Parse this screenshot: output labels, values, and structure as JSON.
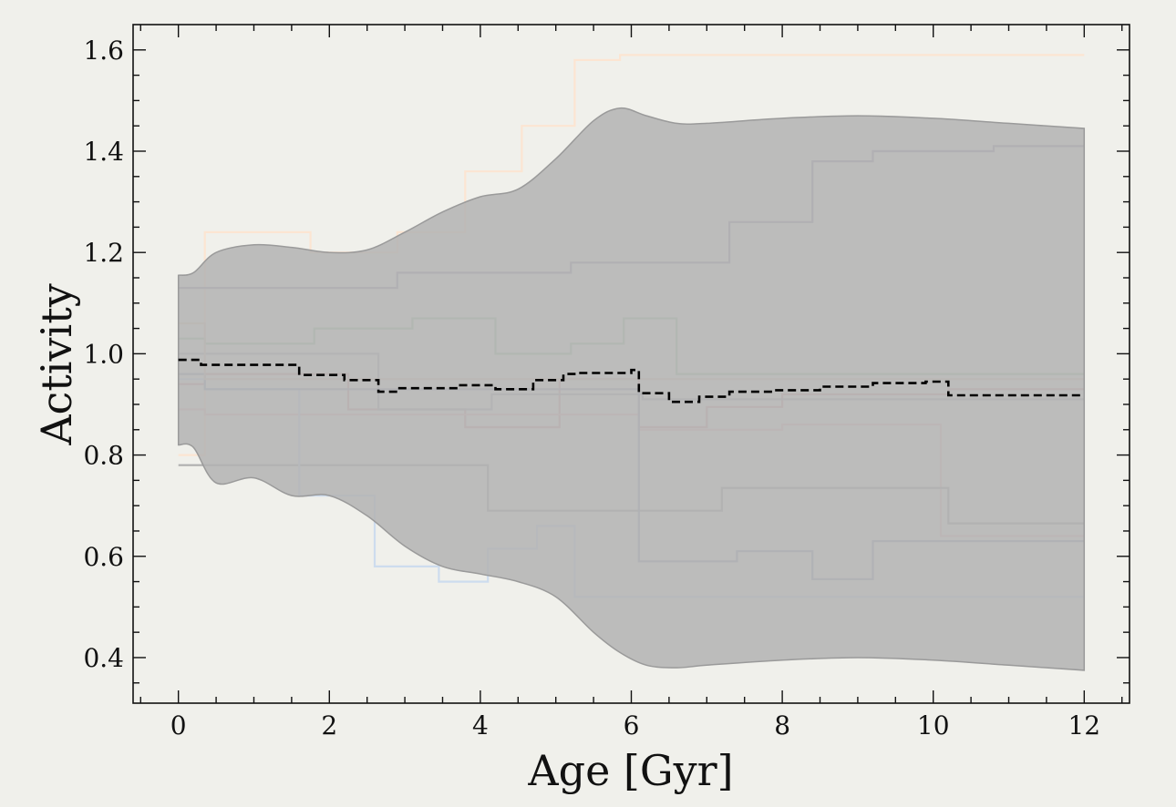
{
  "chart_data": {
    "type": "line",
    "title": "",
    "xlabel": "Age [Gyr]",
    "ylabel": "Activity",
    "xlim": [
      -0.6,
      12.6
    ],
    "ylim": [
      0.31,
      1.65
    ],
    "x_ticks": [
      0,
      2,
      4,
      6,
      8,
      10,
      12
    ],
    "y_ticks": [
      0.4,
      0.6,
      0.8,
      1.0,
      1.2,
      1.4,
      1.6
    ],
    "x_tick_labels": [
      "0",
      "2",
      "4",
      "6",
      "8",
      "10",
      "12"
    ],
    "y_tick_labels": [
      "0.4",
      "0.6",
      "0.8",
      "1.0",
      "1.2",
      "1.4",
      "1.6"
    ],
    "grid": false,
    "band": {
      "color": "#b3b3b3",
      "x": [
        0,
        0.2,
        0.5,
        1.0,
        1.5,
        2.0,
        2.5,
        3.0,
        3.5,
        4.0,
        4.5,
        5.0,
        5.5,
        5.85,
        6.2,
        6.6,
        7.0,
        8.0,
        9.0,
        10.0,
        11.0,
        12.0
      ],
      "upper": [
        1.155,
        1.16,
        1.2,
        1.215,
        1.21,
        1.2,
        1.205,
        1.24,
        1.28,
        1.31,
        1.325,
        1.385,
        1.46,
        1.485,
        1.47,
        1.455,
        1.455,
        1.465,
        1.47,
        1.465,
        1.455,
        1.445
      ],
      "lower": [
        0.82,
        0.815,
        0.745,
        0.755,
        0.72,
        0.72,
        0.68,
        0.62,
        0.58,
        0.565,
        0.55,
        0.52,
        0.45,
        0.41,
        0.385,
        0.38,
        0.385,
        0.395,
        0.4,
        0.395,
        0.385,
        0.375
      ]
    },
    "mean": {
      "color": "#000000",
      "x": [
        0,
        0.3,
        0.3,
        1.6,
        1.6,
        2.2,
        2.2,
        2.65,
        2.65,
        2.9,
        2.9,
        3.7,
        3.7,
        4.2,
        4.2,
        4.7,
        4.7,
        5.1,
        5.1,
        5.3,
        5.3,
        6.0,
        6.0,
        6.1,
        6.1,
        6.5,
        6.5,
        6.9,
        6.9,
        7.3,
        7.3,
        7.9,
        7.9,
        8.5,
        8.5,
        9.2,
        9.2,
        9.9,
        9.9,
        10.2,
        10.2,
        12.0
      ],
      "y": [
        0.988,
        0.988,
        0.978,
        0.978,
        0.958,
        0.958,
        0.948,
        0.948,
        0.925,
        0.925,
        0.932,
        0.932,
        0.938,
        0.938,
        0.93,
        0.93,
        0.948,
        0.948,
        0.96,
        0.96,
        0.962,
        0.962,
        0.968,
        0.968,
        0.922,
        0.922,
        0.905,
        0.905,
        0.915,
        0.915,
        0.925,
        0.925,
        0.928,
        0.928,
        0.935,
        0.935,
        0.942,
        0.942,
        0.945,
        0.945,
        0.918,
        0.918
      ]
    },
    "series": [
      {
        "color": "#fde3cf",
        "x": [
          0,
          0.35,
          1.75,
          2.05,
          2.9,
          3.8,
          4.55,
          5.25,
          5.85,
          12.0
        ],
        "y": [
          0.8,
          1.24,
          1.2,
          1.2,
          1.24,
          1.36,
          1.45,
          1.58,
          1.59,
          1.59
        ]
      },
      {
        "color": "#9e9ab0",
        "x": [
          0,
          0.35,
          2.9,
          5.2,
          7.3,
          8.4,
          9.2,
          10.8,
          12.0
        ],
        "y": [
          1.13,
          1.13,
          1.16,
          1.18,
          1.26,
          1.38,
          1.4,
          1.41,
          1.41
        ]
      },
      {
        "color": "#a9c9a8",
        "x": [
          0,
          0.35,
          1.8,
          3.1,
          4.2,
          5.2,
          5.9,
          6.6,
          12.0
        ],
        "y": [
          1.03,
          1.02,
          1.05,
          1.07,
          1.0,
          1.02,
          1.07,
          0.96,
          0.96
        ]
      },
      {
        "color": "#d9a5a5",
        "x": [
          0,
          0.35,
          2.25,
          3.8,
          5.05,
          6.1,
          7.0,
          8.0,
          10.2,
          12.0
        ],
        "y": [
          0.94,
          0.96,
          0.89,
          0.855,
          0.95,
          0.855,
          0.895,
          0.92,
          0.93,
          0.93
        ]
      },
      {
        "color": "#eec3c3",
        "x": [
          0,
          0.35,
          5.2,
          6.1,
          8.0,
          10.1,
          12.0
        ],
        "y": [
          0.89,
          0.88,
          0.88,
          0.85,
          0.86,
          0.64,
          0.64
        ]
      },
      {
        "color": "#b4b4bf",
        "x": [
          0,
          0.35,
          1.6,
          2.65,
          4.15,
          4.6,
          6.15,
          7.2,
          9.5,
          12.0
        ],
        "y": [
          1.0,
          1.0,
          1.0,
          0.89,
          0.92,
          0.92,
          0.91,
          0.91,
          0.91,
          0.91
        ]
      },
      {
        "color": "#a7a7a7",
        "x": [
          0,
          0.35,
          4.1,
          7.2,
          10.2,
          12.0
        ],
        "y": [
          0.78,
          0.78,
          0.69,
          0.735,
          0.665,
          0.665
        ]
      },
      {
        "color": "#c9d9ee",
        "x": [
          0,
          0.35,
          1.6,
          2.6,
          3.45,
          4.1,
          4.75,
          5.25,
          12.0
        ],
        "y": [
          0.95,
          0.93,
          0.72,
          0.58,
          0.55,
          0.615,
          0.66,
          0.52,
          0.52
        ]
      },
      {
        "color": "#9fa6c0",
        "x": [
          0,
          0.35,
          6.1,
          7.4,
          8.4,
          9.2,
          12.0
        ],
        "y": [
          0.96,
          0.93,
          0.59,
          0.61,
          0.555,
          0.63,
          0.63
        ]
      },
      {
        "color": "#e4cfc0",
        "x": [
          0,
          0.35,
          12.0
        ],
        "y": [
          1.06,
          0.95,
          0.95
        ]
      }
    ]
  }
}
